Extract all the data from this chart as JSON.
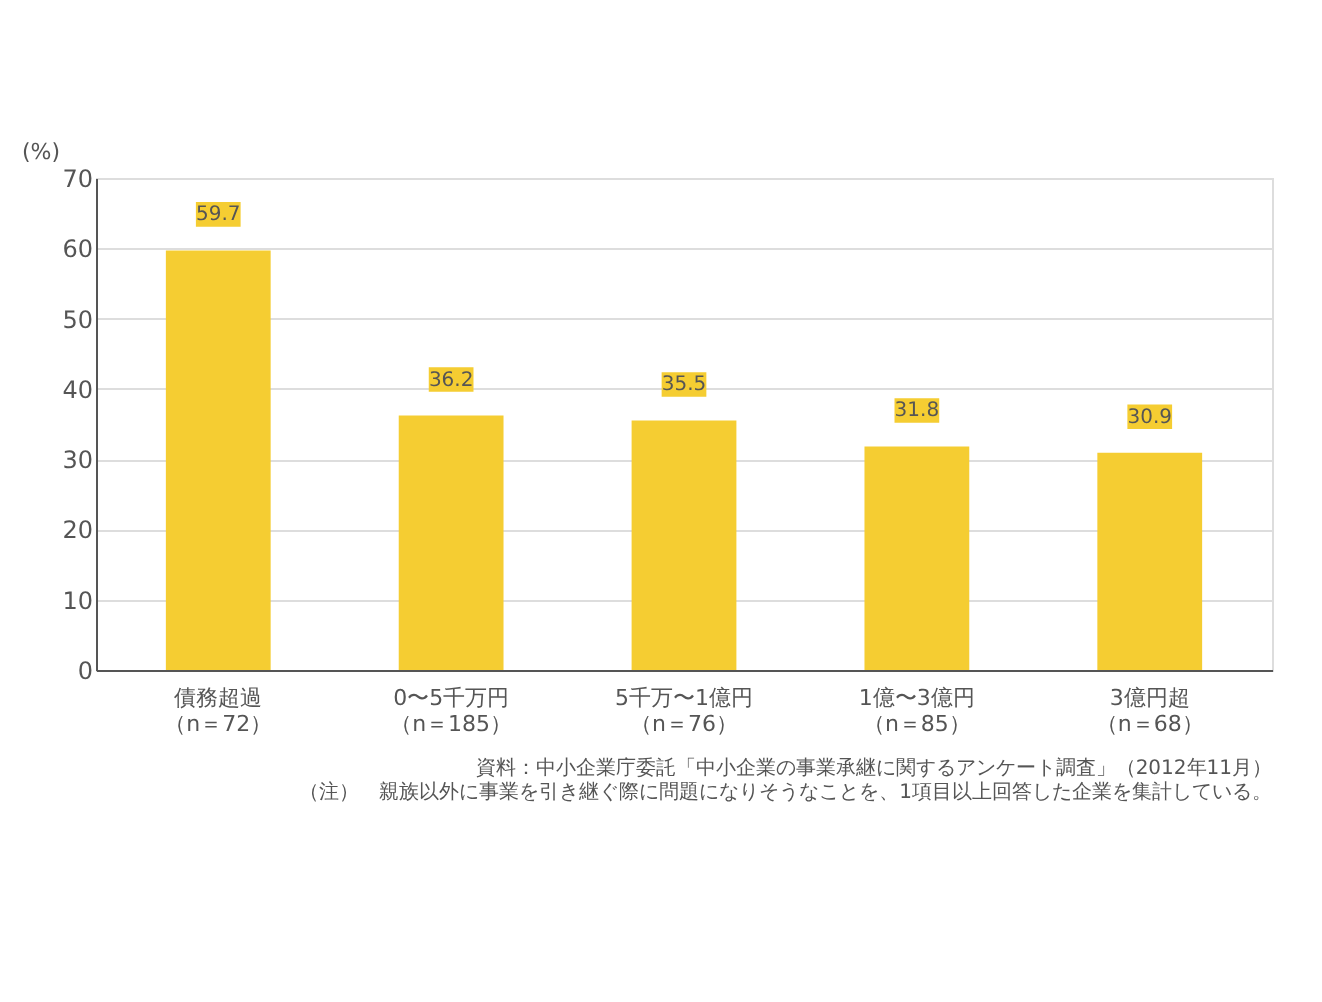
{
  "chart_data": {
    "type": "bar",
    "ylabel": "(%)",
    "categories": [
      "債務超過（n＝72）",
      "0〜5千万円（n＝185）",
      "5千万〜1億円（n＝76）",
      "1億〜3億円（n＝85）",
      "3億円超（n＝68）"
    ],
    "values": [
      59.7,
      36.2,
      35.5,
      31.8,
      30.9
    ],
    "color": "#f5cd32",
    "ylim": [
      0,
      70
    ],
    "yticks": [
      0,
      10,
      20,
      30,
      40,
      50,
      60,
      70
    ],
    "grid": "y",
    "data_labels": true,
    "annotations": [
      "資料：中小企業庁委託「中小企業の事業承継に関するアンケート調査」（2012年11月）",
      "（注）　親族以外に事業を引き継ぐ際に問題になりそうなことを、1項目以上回答した企業を集計している。"
    ]
  }
}
